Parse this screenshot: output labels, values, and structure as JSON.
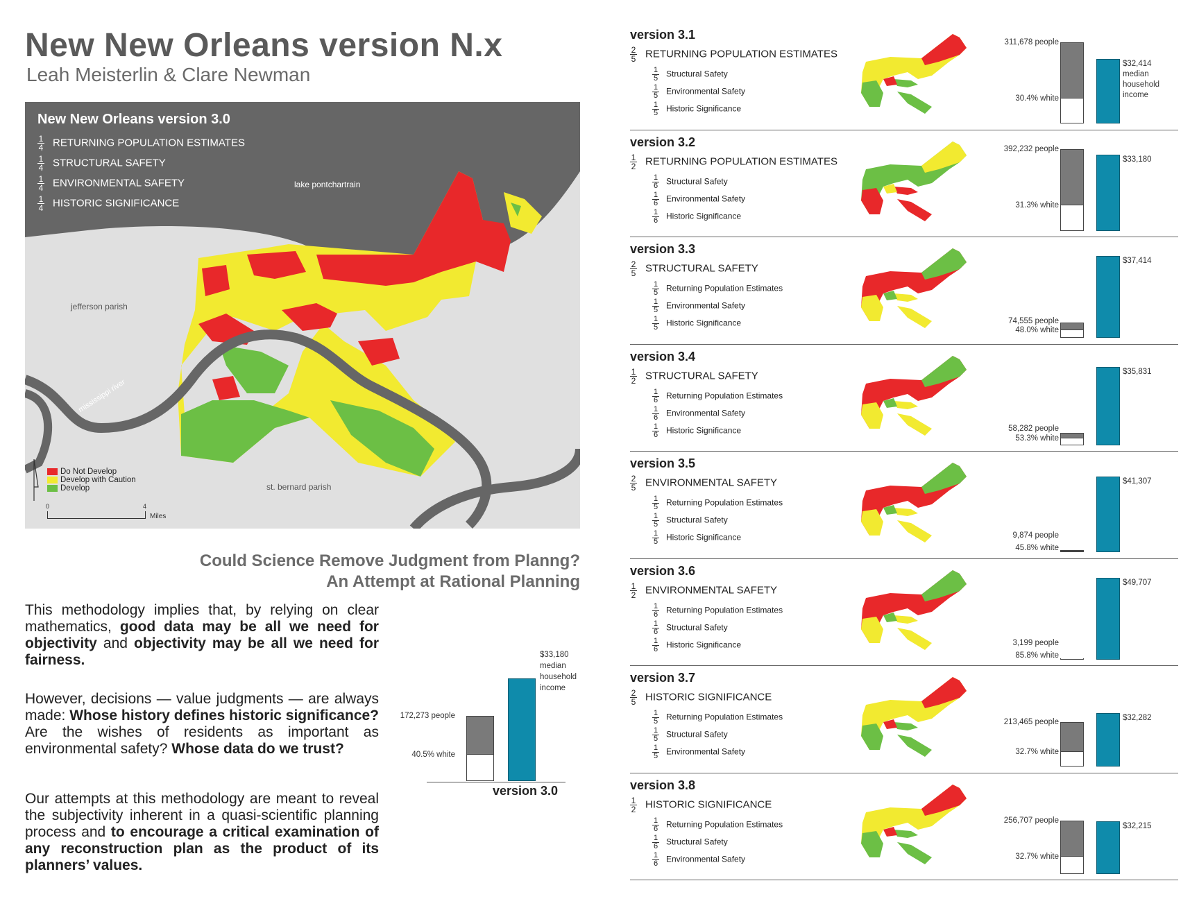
{
  "header": {
    "title": "New New Orleans version N.x",
    "authors": "Leah Meisterlin & Clare Newman"
  },
  "map": {
    "title": "New New Orleans version 3.0",
    "weights": [
      {
        "num": "1",
        "den": "4",
        "label": "RETURNING POPULATION ESTIMATES"
      },
      {
        "num": "1",
        "den": "4",
        "label": "STRUCTURAL SAFETY"
      },
      {
        "num": "1",
        "den": "4",
        "label": "ENVIRONMENTAL SAFETY"
      },
      {
        "num": "1",
        "den": "4",
        "label": "HISTORIC SIGNIFICANCE"
      }
    ],
    "places": {
      "lake": "lake pontchartrain",
      "jefferson": "jefferson parish",
      "river": "mississippi river",
      "stbernard": "st. bernard parish"
    },
    "legend": [
      "Do Not Develop",
      "Develop with Caution",
      "Develop"
    ],
    "scale": {
      "start": "0",
      "end": "4",
      "unit": "Miles"
    },
    "colors": {
      "red": "#e8282a",
      "yellow": "#f2ea30",
      "green": "#6cbf45",
      "water": "#666666",
      "land": "#e0e0e0"
    }
  },
  "question": {
    "line1": "Could Science Remove Judgment from Planng?",
    "line2": "An Attempt at Rational Planning"
  },
  "text": {
    "p1": [
      {
        "t": "This methodology implies that, by relying on clear mathematics, ",
        "b": false
      },
      {
        "t": "good data may be all we need for objectivity",
        "b": true
      },
      {
        "t": " and ",
        "b": false
      },
      {
        "t": "objectivity may be all we need for fairness.",
        "b": true
      }
    ],
    "p2": [
      {
        "t": "However, decisions — value judgments — are always made: ",
        "b": false
      },
      {
        "t": "Whose history defines historic significance?",
        "b": true
      },
      {
        "t": "  Are the wishes of residents as important as environmental safety?  ",
        "b": false
      },
      {
        "t": "Whose data do we trust?",
        "b": true
      }
    ],
    "p3": [
      {
        "t": "Our attempts at this methodology are meant to reveal the subjectivity inherent in a quasi-scientific planning process and ",
        "b": false
      },
      {
        "t": "to encourage a critical examination of any reconstruction plan as the product of its planners’ values.",
        "b": true
      }
    ]
  },
  "v30chart": {
    "people": "172,273 people",
    "white": "40.5% white",
    "income": [
      "$33,180",
      "median",
      "household",
      "income"
    ],
    "label": "version 3.0",
    "people_frac": 0.55,
    "white_frac": 0.405,
    "income_frac": 0.87
  },
  "versions": [
    {
      "name": "version 3.1",
      "mainNum": "2",
      "mainDen": "5",
      "main": "RETURNING POPULATION ESTIMATES",
      "subs": [
        {
          "num": "1",
          "den": "5",
          "label": "Structural Safety"
        },
        {
          "num": "1",
          "den": "5",
          "label": "Environmental Safety"
        },
        {
          "num": "1",
          "den": "5",
          "label": "Historic Significance"
        }
      ],
      "people": "311,678 people",
      "white": "30.4% white",
      "income": "$32,414",
      "incomeExtra": [
        "median",
        "household",
        "income"
      ],
      "peopleFrac": 0.99,
      "whiteFrac": 0.304,
      "incomeFrac": 0.79,
      "mix": "yellow"
    },
    {
      "name": "version 3.2",
      "mainNum": "1",
      "mainDen": "2",
      "main": "RETURNING POPULATION ESTIMATES",
      "subs": [
        {
          "num": "1",
          "den": "6",
          "label": "Structural Safety"
        },
        {
          "num": "1",
          "den": "6",
          "label": "Environmental Safety"
        },
        {
          "num": "1",
          "den": "6",
          "label": "Historic Significance"
        }
      ],
      "people": "392,232 people",
      "white": "31.3% white",
      "income": "$33,180",
      "incomeExtra": [],
      "peopleFrac": 1.0,
      "whiteFrac": 0.313,
      "incomeFrac": 0.93,
      "mix": "green"
    },
    {
      "name": "version 3.3",
      "mainNum": "2",
      "mainDen": "5",
      "main": "STRUCTURAL SAFETY",
      "subs": [
        {
          "num": "1",
          "den": "5",
          "label": "Returning Population Estimates"
        },
        {
          "num": "1",
          "den": "5",
          "label": "Environmental Safety"
        },
        {
          "num": "1",
          "den": "5",
          "label": "Historic Significance"
        }
      ],
      "people": "74,555 people",
      "white": "48.0% white",
      "income": "$37,414",
      "incomeExtra": [],
      "peopleFrac": 0.19,
      "whiteFrac": 0.48,
      "incomeFrac": 1.0,
      "mix": "red"
    },
    {
      "name": "version 3.4",
      "mainNum": "1",
      "mainDen": "2",
      "main": "STRUCTURAL SAFETY",
      "subs": [
        {
          "num": "1",
          "den": "6",
          "label": "Returning Population Estimates"
        },
        {
          "num": "1",
          "den": "6",
          "label": "Environmental Safety"
        },
        {
          "num": "1",
          "den": "6",
          "label": "Historic Significance"
        }
      ],
      "people": "58,282 people",
      "white": "53.3% white",
      "income": "$35,831",
      "incomeExtra": [],
      "peopleFrac": 0.15,
      "whiteFrac": 0.533,
      "incomeFrac": 0.96,
      "mix": "red"
    },
    {
      "name": "version 3.5",
      "mainNum": "2",
      "mainDen": "5",
      "main": "ENVIRONMENTAL SAFETY",
      "subs": [
        {
          "num": "1",
          "den": "5",
          "label": "Returning Population Estimates"
        },
        {
          "num": "1",
          "den": "5",
          "label": "Structural Safety"
        },
        {
          "num": "1",
          "den": "5",
          "label": "Historic Significance"
        }
      ],
      "people": "9,874 people",
      "white": "45.8% white",
      "income": "$41,307",
      "incomeExtra": [],
      "peopleFrac": 0.025,
      "whiteFrac": 0.458,
      "incomeFrac": 0.92,
      "mix": "red"
    },
    {
      "name": "version 3.6",
      "mainNum": "1",
      "mainDen": "2",
      "main": "ENVIRONMENTAL SAFETY",
      "subs": [
        {
          "num": "1",
          "den": "6",
          "label": "Returning Population Estimates"
        },
        {
          "num": "1",
          "den": "6",
          "label": "Structural Safety"
        },
        {
          "num": "1",
          "den": "6",
          "label": "Historic Significance"
        }
      ],
      "people": "3,199 people",
      "white": "85.8% white",
      "income": "$49,707",
      "incomeExtra": [],
      "peopleFrac": 0.008,
      "whiteFrac": 0.858,
      "incomeFrac": 1.0,
      "mix": "red"
    },
    {
      "name": "version 3.7",
      "mainNum": "2",
      "mainDen": "5",
      "main": "HISTORIC SIGNIFICANCE",
      "subs": [
        {
          "num": "1",
          "den": "5",
          "label": "Returning Population Estimates"
        },
        {
          "num": "1",
          "den": "5",
          "label": "Structural Safety"
        },
        {
          "num": "1",
          "den": "5",
          "label": "Environmental Safety"
        }
      ],
      "people": "213,465 people",
      "white": "32.7% white",
      "income": "$32,282",
      "incomeExtra": [],
      "peopleFrac": 0.54,
      "whiteFrac": 0.327,
      "incomeFrac": 0.65,
      "mix": "yellow"
    },
    {
      "name": "version 3.8",
      "mainNum": "1",
      "mainDen": "2",
      "main": "HISTORIC SIGNIFICANCE",
      "subs": [
        {
          "num": "1",
          "den": "6",
          "label": "Returning Population Estimates"
        },
        {
          "num": "1",
          "den": "6",
          "label": "Structural Safety"
        },
        {
          "num": "1",
          "den": "6",
          "label": "Environmental Safety"
        }
      ],
      "people": "256,707 people",
      "white": "32.7% white",
      "income": "$32,215",
      "incomeExtra": [],
      "peopleFrac": 0.65,
      "whiteFrac": 0.327,
      "incomeFrac": 0.64,
      "mix": "yellow"
    }
  ]
}
